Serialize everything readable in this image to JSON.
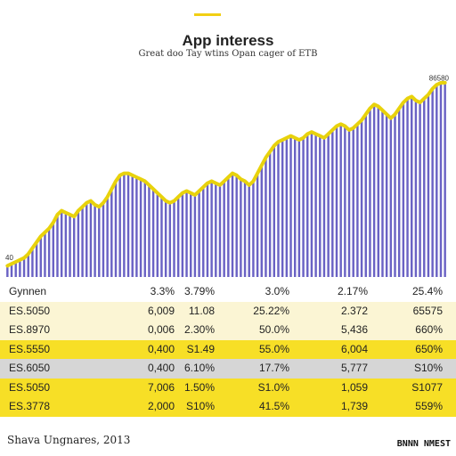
{
  "header": {
    "title": "App interess",
    "subtitle": "Great doo Tay wtins Opan cager of ETB"
  },
  "chart_data": {
    "type": "bar",
    "title": "App interess",
    "subtitle": "Great doo Tay wtins Opan cager of ETB",
    "ylim": [
      0,
      100
    ],
    "values": [
      5,
      6,
      7,
      8,
      9,
      11,
      14,
      17,
      20,
      22,
      24,
      27,
      31,
      33,
      32,
      31,
      30,
      33,
      35,
      37,
      38,
      36,
      35,
      37,
      40,
      44,
      48,
      51,
      52,
      52,
      51,
      50,
      49,
      48,
      46,
      44,
      42,
      40,
      38,
      37,
      38,
      40,
      42,
      43,
      42,
      41,
      43,
      45,
      47,
      48,
      47,
      46,
      48,
      50,
      52,
      51,
      49,
      48,
      46,
      48,
      52,
      56,
      60,
      63,
      66,
      68,
      69,
      70,
      71,
      70,
      69,
      70,
      72,
      73,
      72,
      71,
      70,
      72,
      74,
      76,
      77,
      76,
      74,
      75,
      77,
      79,
      82,
      85,
      87,
      86,
      84,
      82,
      80,
      82,
      85,
      88,
      90,
      91,
      89,
      88,
      90,
      92,
      95,
      97,
      98,
      98
    ],
    "annotations": [
      "40",
      "86580"
    ],
    "grid": false,
    "legend": "none",
    "colors": {
      "bar": "#6a62c4",
      "line": "#e8d20c"
    }
  },
  "table": {
    "rows": [
      {
        "cells": [
          "Gynnen",
          "3.3%",
          "3.79%",
          "3.0%",
          "2.17%",
          "25.4%"
        ],
        "bg": "#ffffff"
      },
      {
        "cells": [
          "ES.5050",
          "6,009",
          "11.08",
          "25.22%",
          "2.372",
          "65575"
        ],
        "bg": "#fbf5d4"
      },
      {
        "cells": [
          "ES.8970",
          "0,006",
          "2.30%",
          "50.0%",
          "5,436",
          "660%"
        ],
        "bg": "#fbf5d4"
      },
      {
        "cells": [
          "ES.5550",
          "0,400",
          "S1.49",
          "55.0%",
          "6,004",
          "650%"
        ],
        "bg": "#f7df26"
      },
      {
        "cells": [
          "ES.6050",
          "0,400",
          "6.10%",
          "17.7%",
          "5,777",
          "S10%"
        ],
        "bg": "#d6d6d6"
      },
      {
        "cells": [
          "ES.5050",
          "7,006",
          "1.50%",
          "S1.0%",
          "1,059",
          "S1077"
        ],
        "bg": "#f7df26"
      },
      {
        "cells": [
          "ES.3778",
          "2,000",
          "S10%",
          "41.5%",
          "1,739",
          "559%"
        ],
        "bg": "#f7df26"
      }
    ]
  },
  "footer": {
    "left": "Shava Ungnares, 2013",
    "right": "BNNN NMEST"
  },
  "colors": {
    "accent": "#f2cf14",
    "bar": "#6a62c4",
    "line": "#e8d20c"
  }
}
